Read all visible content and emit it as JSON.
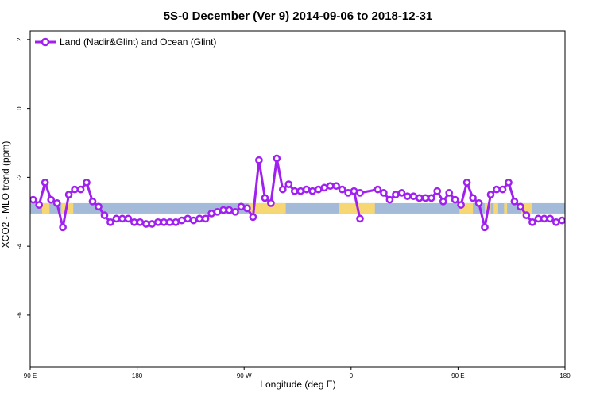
{
  "chart_data": {
    "type": "line",
    "title": "5S-0 December (Ver 9)   2014-09-06 to 2018-12-31",
    "xlabel": "Longitude (deg E)",
    "ylabel": "XCO2 - MLO trend (ppm)",
    "xlim": [
      90,
      450
    ],
    "ylim": [
      -7.5,
      2.25
    ],
    "x_ticks": [
      {
        "value": 90,
        "label": "90 E"
      },
      {
        "value": 162,
        "label": "180"
      },
      {
        "value": 234,
        "label": "90 W"
      },
      {
        "value": 306,
        "label": "0"
      },
      {
        "value": 378,
        "label": "90 E"
      },
      {
        "value": 450,
        "label": "180"
      }
    ],
    "y_ticks": [
      {
        "value": 2,
        "label": "2"
      },
      {
        "value": 0,
        "label": "0"
      },
      {
        "value": -2,
        "label": "-2"
      },
      {
        "value": -4,
        "label": "-4"
      },
      {
        "value": -6,
        "label": "-6"
      }
    ],
    "grid": false,
    "legend_position": "top-left",
    "color": "#a020f0",
    "band": {
      "y_range": [
        -3.05,
        -2.75
      ],
      "ocean_color": "#a3bbd9",
      "land_color": "#f7d774",
      "land_segments": [
        [
          98,
          103
        ],
        [
          111,
          119
        ],
        [
          237,
          262
        ],
        [
          298,
          322
        ],
        [
          379,
          388
        ],
        [
          396,
          400
        ],
        [
          402,
          405
        ],
        [
          409,
          411
        ],
        [
          420,
          428
        ]
      ]
    },
    "series": [
      {
        "name": "Land (Nadir&Glint) and Ocean (Glint)",
        "segments": [
          {
            "x": [
              92,
              96,
              100,
              104,
              108,
              112,
              116,
              120,
              124,
              128,
              132,
              136,
              140,
              144,
              148,
              152,
              156,
              160,
              164,
              168,
              172,
              176,
              180,
              184,
              188,
              192,
              196,
              200,
              204,
              208,
              212,
              216,
              220,
              224,
              228,
              232,
              236,
              240,
              244,
              248,
              252,
              256,
              260,
              264,
              268,
              272,
              276,
              280,
              284,
              288,
              292,
              296,
              300,
              304,
              308,
              312
            ],
            "y": [
              -2.65,
              -2.8,
              -2.15,
              -2.65,
              -2.75,
              -3.45,
              -2.5,
              -2.35,
              -2.35,
              -2.15,
              -2.7,
              -2.85,
              -3.1,
              -3.3,
              -3.2,
              -3.2,
              -3.2,
              -3.3,
              -3.3,
              -3.35,
              -3.35,
              -3.3,
              -3.3,
              -3.3,
              -3.3,
              -3.25,
              -3.2,
              -3.25,
              -3.2,
              -3.2,
              -3.05,
              -3.0,
              -2.95,
              -2.95,
              -3.0,
              -2.85,
              -2.9,
              -3.15,
              -1.5,
              -2.6,
              -2.75,
              -1.45,
              -2.35,
              -2.2,
              -2.4,
              -2.4,
              -2.35,
              -2.4,
              -2.35,
              -2.3,
              -2.25,
              -2.25,
              -2.35,
              -2.45,
              -2.4,
              -3.2
            ]
          },
          {
            "x": [
              312,
              324,
              328,
              332,
              336,
              340,
              344,
              348,
              352,
              356,
              360,
              364,
              368,
              372,
              376,
              380,
              384,
              388,
              392,
              396,
              400,
              404,
              408,
              412,
              416,
              420,
              424,
              428,
              432,
              436,
              440,
              444,
              448
            ],
            "y": [
              -2.45,
              -2.35,
              -2.45,
              -2.65,
              -2.5,
              -2.45,
              -2.55,
              -2.55,
              -2.6,
              -2.6,
              -2.6,
              -2.4,
              -2.7,
              -2.45,
              -2.65,
              -2.8,
              -2.15,
              -2.6,
              -2.75,
              -3.45,
              -2.5,
              -2.35,
              -2.35,
              -2.15,
              -2.7,
              -2.85,
              -3.1,
              -3.3,
              -3.2,
              -3.2,
              -3.2,
              -3.3,
              -3.25
            ]
          }
        ]
      }
    ]
  }
}
